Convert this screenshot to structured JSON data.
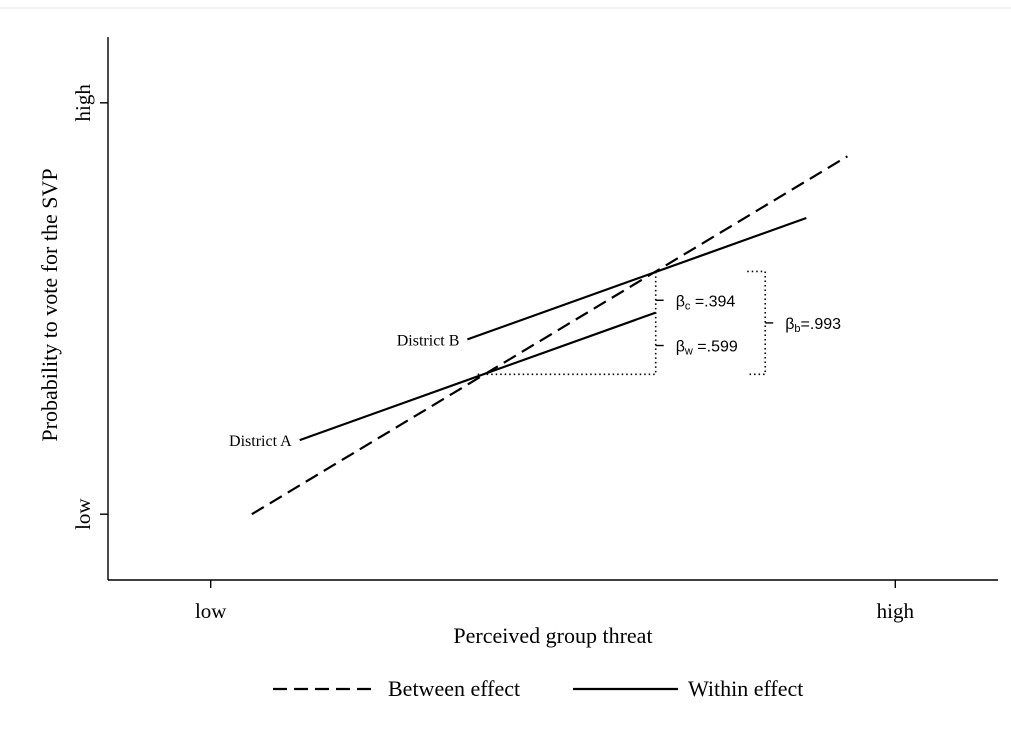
{
  "chart_data": {
    "type": "line",
    "title": "",
    "xlabel": "Perceived group threat",
    "ylabel": "Probability to vote for the SVP",
    "x_ticks": [
      "low",
      "high"
    ],
    "y_ticks": [
      "low",
      "high"
    ],
    "xlim": [
      -0.15,
      1.15
    ],
    "ylim": [
      -0.16,
      1.16
    ],
    "grid": false,
    "legend_position": "bottom",
    "series": [
      {
        "name": "Between effect",
        "style": "dashed",
        "points": [
          [
            0.06,
            0.0
          ],
          [
            0.93,
            0.87
          ]
        ]
      },
      {
        "name": "Within effect",
        "style": "solid",
        "label": "District A",
        "points": [
          [
            0.13,
            0.18
          ],
          [
            0.65,
            0.49
          ]
        ]
      },
      {
        "name": "Within effect",
        "style": "solid",
        "label": "District B",
        "points": [
          [
            0.375,
            0.425
          ],
          [
            0.87,
            0.72
          ]
        ]
      }
    ],
    "annotations": {
      "district_a": "District A",
      "district_b": "District B",
      "beta_c": {
        "symbol": "β",
        "sub": "c",
        "value": " =.394"
      },
      "beta_w": {
        "symbol": "β",
        "sub": "w",
        "value": " =.599"
      },
      "beta_b": {
        "symbol": "β",
        "sub": "b",
        "value": "=.993"
      },
      "between_triangle": {
        "from": [
          0.39,
          0.34
        ],
        "to": [
          0.65,
          0.59
        ]
      },
      "beta_b_bracket": {
        "x": 0.81,
        "y_range": [
          0.34,
          0.59
        ]
      }
    }
  }
}
